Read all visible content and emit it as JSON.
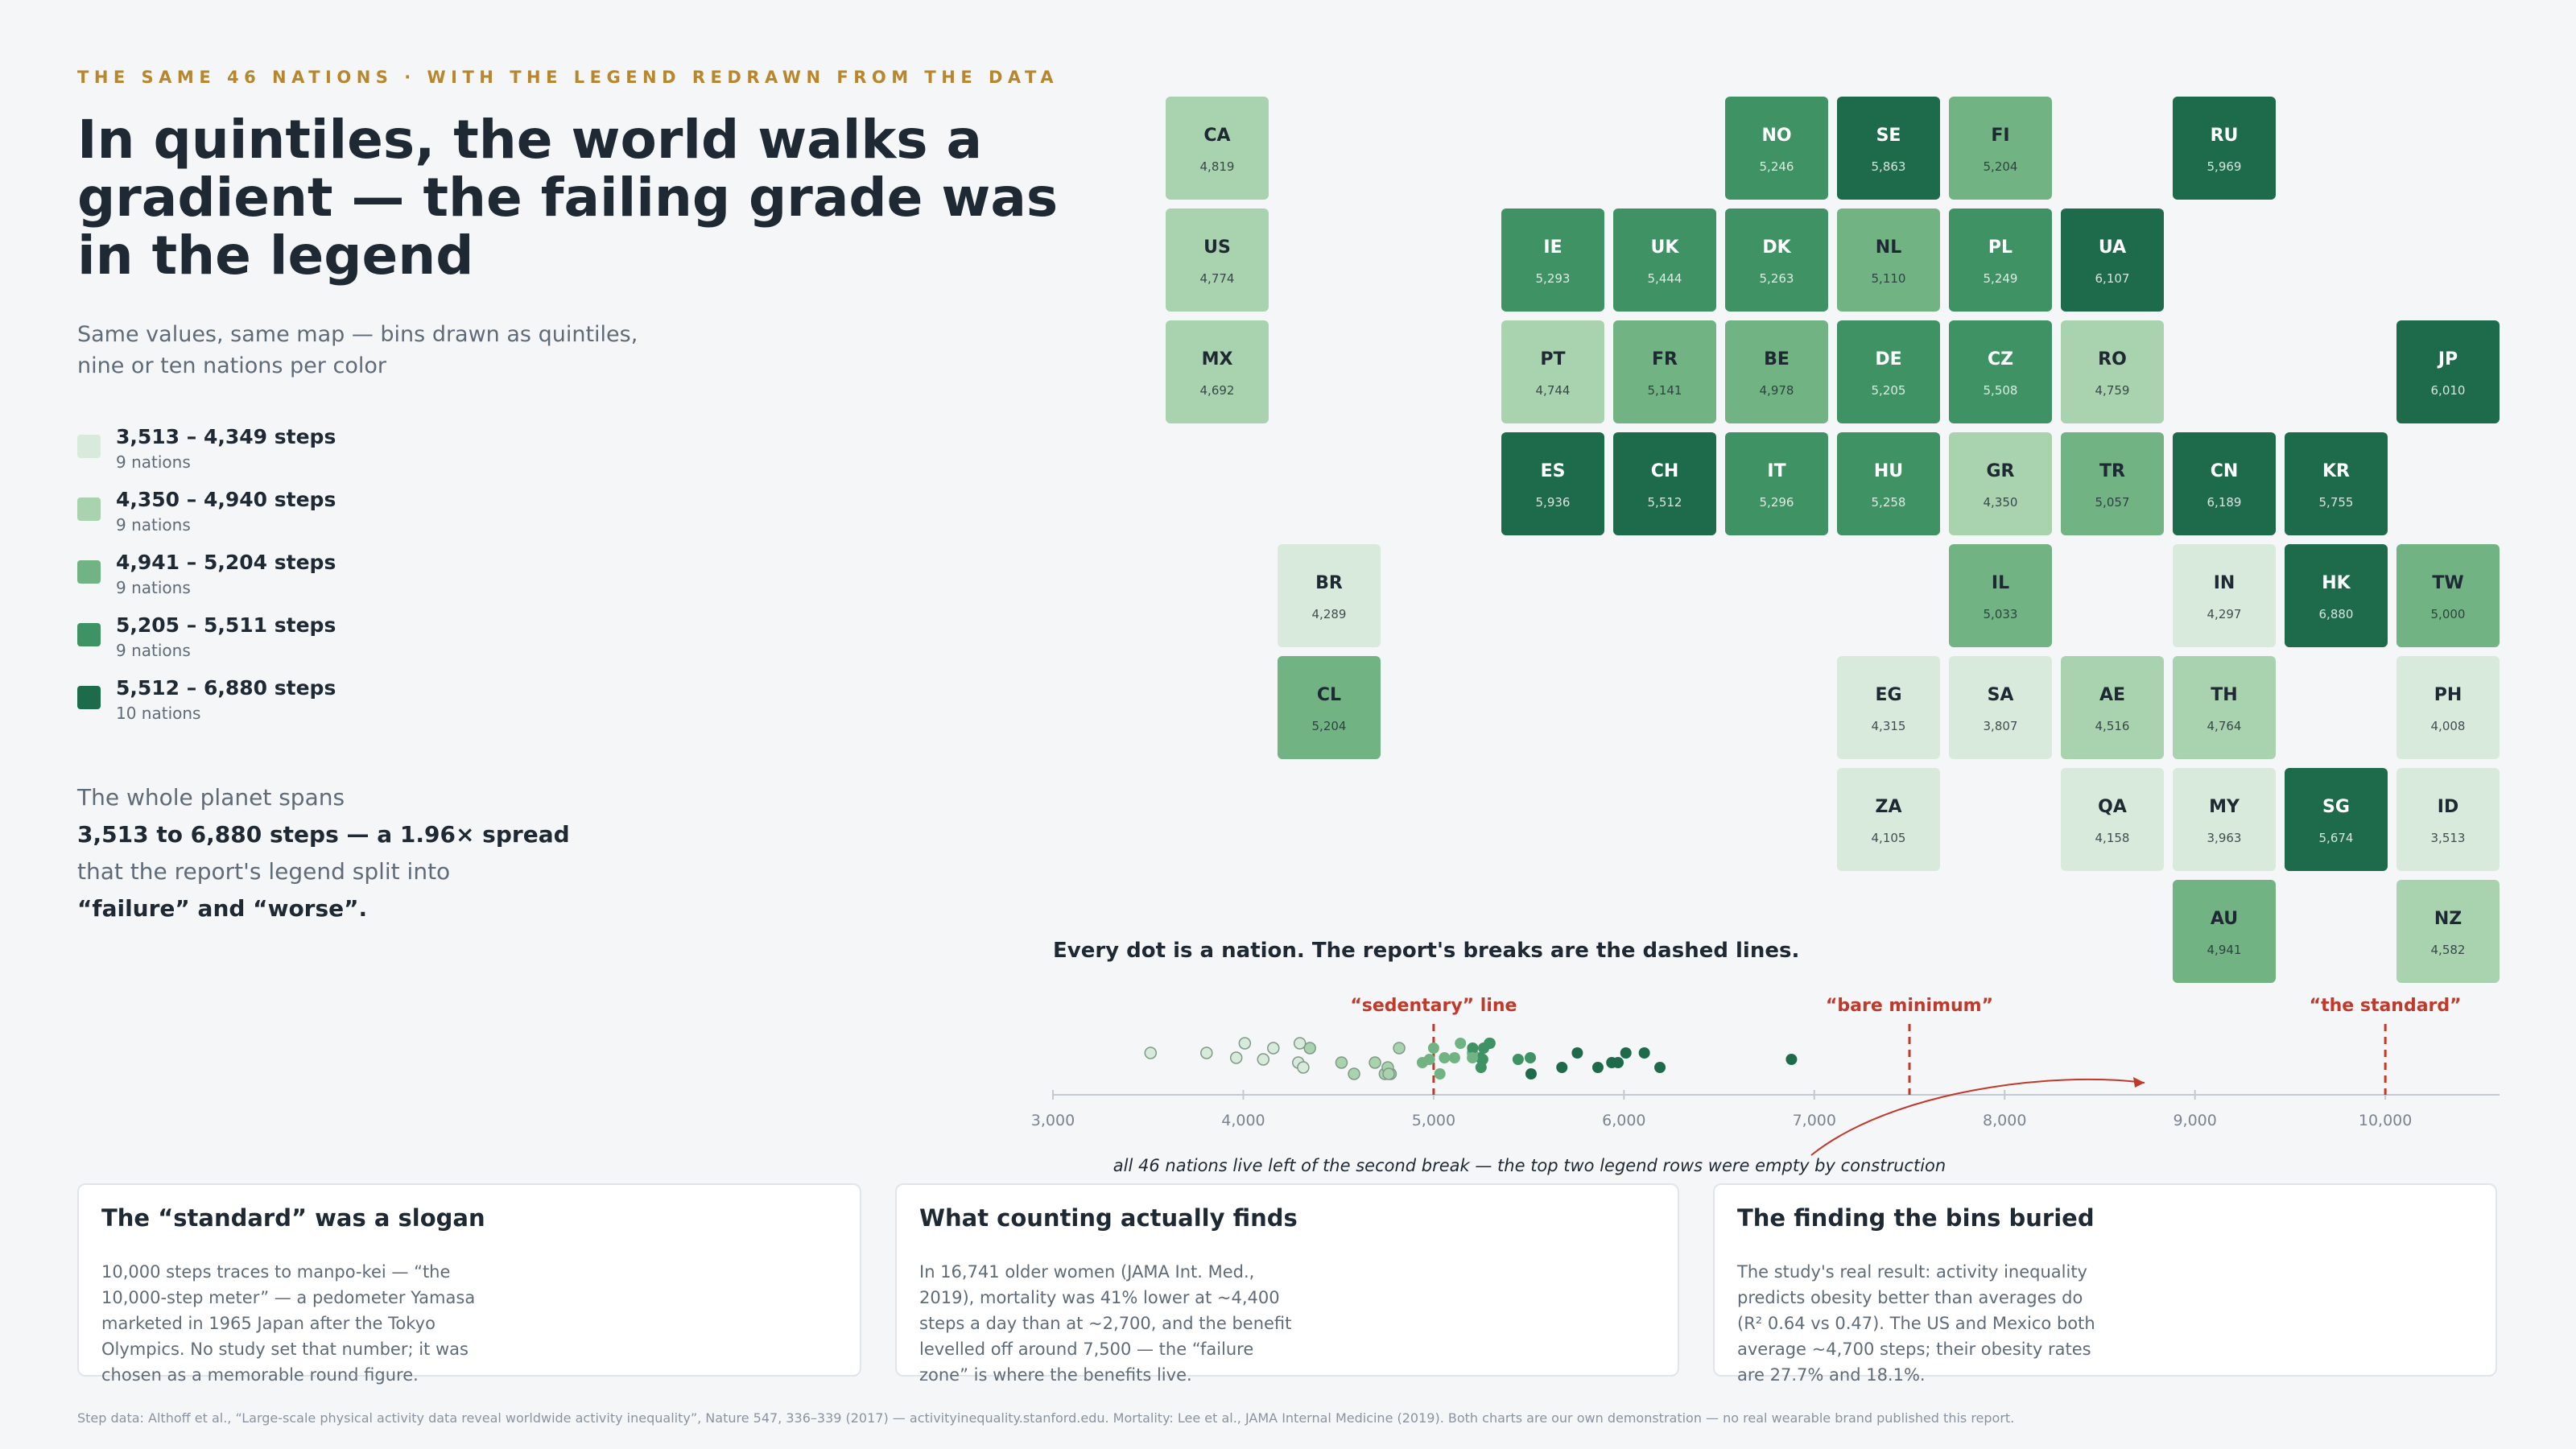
{
  "header": {
    "kicker": "THE SAME 46 NATIONS · WITH THE LEGEND REDRAWN FROM THE DATA",
    "title": "In quintiles, the world walks a gradient — the failing grade was in the legend",
    "subtitle": "Same values, same map — bins drawn as quintiles, nine or ten nations per color"
  },
  "legend": [
    {
      "range": "3,513 – 4,349 steps",
      "count": "9 nations",
      "color": "#d8eadb"
    },
    {
      "range": "4,350 – 4,940 steps",
      "count": "9 nations",
      "color": "#a9d3ae"
    },
    {
      "range": "4,941 – 5,204 steps",
      "count": "9 nations",
      "color": "#72b383"
    },
    {
      "range": "5,205 – 5,511 steps",
      "count": "9 nations",
      "color": "#3e9264"
    },
    {
      "range": "5,512 – 6,880 steps",
      "count": "10 nations",
      "color": "#1e6b4c"
    }
  ],
  "spread": {
    "line1": "The whole planet spans",
    "line2": "3,513 to 6,880 steps — a 1.96× spread",
    "line3": "that the report's legend split into",
    "line4": "“failure” and “worse”."
  },
  "chart_data": [
    {
      "type": "heatmap",
      "description_of_bins": "quintile tile map",
      "tiles": [
        {
          "code": "CA",
          "value": "4,819",
          "steps": 4819,
          "bin": 1
        },
        {
          "code": "NO",
          "value": "5,246",
          "steps": 5246,
          "bin": 3
        },
        {
          "code": "SE",
          "value": "5,863",
          "steps": 5863,
          "bin": 4
        },
        {
          "code": "FI",
          "value": "5,204",
          "steps": 5204,
          "bin": 2
        },
        {
          "code": "RU",
          "value": "5,969",
          "steps": 5969,
          "bin": 4
        },
        {
          "code": "US",
          "value": "4,774",
          "steps": 4774,
          "bin": 1
        },
        {
          "code": "IE",
          "value": "5,293",
          "steps": 5293,
          "bin": 3
        },
        {
          "code": "UK",
          "value": "5,444",
          "steps": 5444,
          "bin": 3
        },
        {
          "code": "DK",
          "value": "5,263",
          "steps": 5263,
          "bin": 3
        },
        {
          "code": "NL",
          "value": "5,110",
          "steps": 5110,
          "bin": 2
        },
        {
          "code": "PL",
          "value": "5,249",
          "steps": 5249,
          "bin": 3
        },
        {
          "code": "UA",
          "value": "6,107",
          "steps": 6107,
          "bin": 4
        },
        {
          "code": "MX",
          "value": "4,692",
          "steps": 4692,
          "bin": 1
        },
        {
          "code": "PT",
          "value": "4,744",
          "steps": 4744,
          "bin": 1
        },
        {
          "code": "FR",
          "value": "5,141",
          "steps": 5141,
          "bin": 2
        },
        {
          "code": "BE",
          "value": "4,978",
          "steps": 4978,
          "bin": 2
        },
        {
          "code": "DE",
          "value": "5,205",
          "steps": 5205,
          "bin": 3
        },
        {
          "code": "CZ",
          "value": "5,508",
          "steps": 5508,
          "bin": 3
        },
        {
          "code": "RO",
          "value": "4,759",
          "steps": 4759,
          "bin": 1
        },
        {
          "code": "JP",
          "value": "6,010",
          "steps": 6010,
          "bin": 4
        },
        {
          "code": "ES",
          "value": "5,936",
          "steps": 5936,
          "bin": 4
        },
        {
          "code": "CH",
          "value": "5,512",
          "steps": 5512,
          "bin": 4
        },
        {
          "code": "IT",
          "value": "5,296",
          "steps": 5296,
          "bin": 3
        },
        {
          "code": "HU",
          "value": "5,258",
          "steps": 5258,
          "bin": 3
        },
        {
          "code": "GR",
          "value": "4,350",
          "steps": 4350,
          "bin": 1
        },
        {
          "code": "TR",
          "value": "5,057",
          "steps": 5057,
          "bin": 2
        },
        {
          "code": "CN",
          "value": "6,189",
          "steps": 6189,
          "bin": 4
        },
        {
          "code": "KR",
          "value": "5,755",
          "steps": 5755,
          "bin": 4
        },
        {
          "code": "BR",
          "value": "4,289",
          "steps": 4289,
          "bin": 0
        },
        {
          "code": "IL",
          "value": "5,033",
          "steps": 5033,
          "bin": 2
        },
        {
          "code": "IN",
          "value": "4,297",
          "steps": 4297,
          "bin": 0
        },
        {
          "code": "HK",
          "value": "6,880",
          "steps": 6880,
          "bin": 4
        },
        {
          "code": "TW",
          "value": "5,000",
          "steps": 5000,
          "bin": 2
        },
        {
          "code": "CL",
          "value": "5,204",
          "steps": 5204,
          "bin": 2
        },
        {
          "code": "EG",
          "value": "4,315",
          "steps": 4315,
          "bin": 0
        },
        {
          "code": "SA",
          "value": "3,807",
          "steps": 3807,
          "bin": 0
        },
        {
          "code": "AE",
          "value": "4,516",
          "steps": 4516,
          "bin": 1
        },
        {
          "code": "TH",
          "value": "4,764",
          "steps": 4764,
          "bin": 1
        },
        {
          "code": "PH",
          "value": "4,008",
          "steps": 4008,
          "bin": 0
        },
        {
          "code": "ZA",
          "value": "4,105",
          "steps": 4105,
          "bin": 0
        },
        {
          "code": "QA",
          "value": "4,158",
          "steps": 4158,
          "bin": 0
        },
        {
          "code": "MY",
          "value": "3,963",
          "steps": 3963,
          "bin": 0
        },
        {
          "code": "SG",
          "value": "5,674",
          "steps": 5674,
          "bin": 4
        },
        {
          "code": "ID",
          "value": "3,513",
          "steps": 3513,
          "bin": 0
        },
        {
          "code": "AU",
          "value": "4,941",
          "steps": 4941,
          "bin": 2
        },
        {
          "code": "NZ",
          "value": "4,582",
          "steps": 4582,
          "bin": 1
        }
      ]
    },
    {
      "type": "scatter",
      "title": "Every dot is a nation. The report's breaks are the dashed lines.",
      "xlim": [
        3000,
        10600
      ],
      "x_ticks": [
        "3,000",
        "4,000",
        "5,000",
        "6,000",
        "7,000",
        "8,000",
        "9,000",
        "10,000"
      ],
      "x_tick_values": [
        3000,
        4000,
        5000,
        6000,
        7000,
        8000,
        9000,
        10000
      ],
      "breaks": [
        {
          "label": "“sedentary” line",
          "x": 5000
        },
        {
          "label": "“bare minimum”",
          "x": 7500
        },
        {
          "label": "“the standard”",
          "x": 10000
        }
      ],
      "note": "all 46 nations live left of the second break — the top two legend rows were empty by construction"
    }
  ],
  "cards": [
    {
      "title": "The “standard” was a slogan",
      "lines": [
        "10,000 steps traces to manpo-kei — “the",
        "10,000-step meter” — a pedometer Yamasa",
        "marketed in 1965 Japan after the Tokyo",
        "Olympics. No study set that number; it was",
        "chosen as a memorable round figure."
      ]
    },
    {
      "title": "What counting actually finds",
      "lines": [
        "In 16,741 older women (JAMA Int. Med.,",
        "2019), mortality was 41% lower at ~4,400",
        "steps a day than at ~2,700, and the benefit",
        "levelled off around 7,500 — the “failure",
        "zone” is where the benefits live."
      ]
    },
    {
      "title": "The finding the bins buried",
      "lines": [
        "The study's real result: activity inequality",
        "predicts obesity better than averages do",
        "(R² 0.64 vs 0.47). The US and Mexico both",
        "average ~4,700 steps; their obesity rates",
        "are 27.7% and 18.1%."
      ]
    }
  ],
  "footer": "Step data: Althoff et al., “Large-scale physical activity data reveal worldwide activity inequality”, Nature 547, 336–339 (2017) — activityinequality.stanford.edu. Mortality: Lee et al., JAMA Internal Medicine (2019). Both charts are our own demonstration — no real wearable brand published this report.",
  "colors": {
    "accent": "#b8862b",
    "break_red": "#c0392b",
    "bins": [
      "#d8eadb",
      "#a9d3ae",
      "#72b383",
      "#3e9264",
      "#1e6b4c"
    ]
  }
}
